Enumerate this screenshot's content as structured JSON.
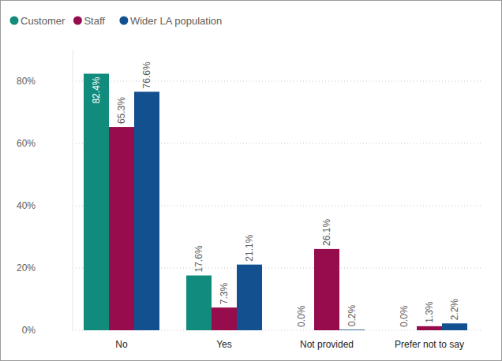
{
  "chart_data": {
    "type": "bar",
    "categories": [
      "No",
      "Yes",
      "Not provided",
      "Prefer not to say"
    ],
    "series": [
      {
        "name": "Customer",
        "color": "#118c7c",
        "values": [
          82.4,
          17.6,
          0.0,
          0.0
        ],
        "value_labels": [
          "82.4%",
          "17.6%",
          "0.0%",
          "0.0%"
        ]
      },
      {
        "name": "Staff",
        "color": "#960c4d",
        "values": [
          65.3,
          7.3,
          26.1,
          1.3
        ],
        "value_labels": [
          "65.3%",
          "7.3%",
          "26.1%",
          "1.3%"
        ]
      },
      {
        "name": "Wider LA population",
        "color": "#13508f",
        "values": [
          76.6,
          21.1,
          0.2,
          2.2
        ],
        "value_labels": [
          "76.6%",
          "21.1%",
          "0.2%",
          "2.2%"
        ]
      }
    ],
    "ylim": [
      0,
      90
    ],
    "yticks": [
      {
        "value": 0,
        "label": "0%"
      },
      {
        "value": 20,
        "label": "20%"
      },
      {
        "value": 40,
        "label": "40%"
      },
      {
        "value": 60,
        "label": "60%"
      },
      {
        "value": 80,
        "label": "80%"
      }
    ],
    "grid": true,
    "legend": "top-left",
    "data_labels": true
  }
}
